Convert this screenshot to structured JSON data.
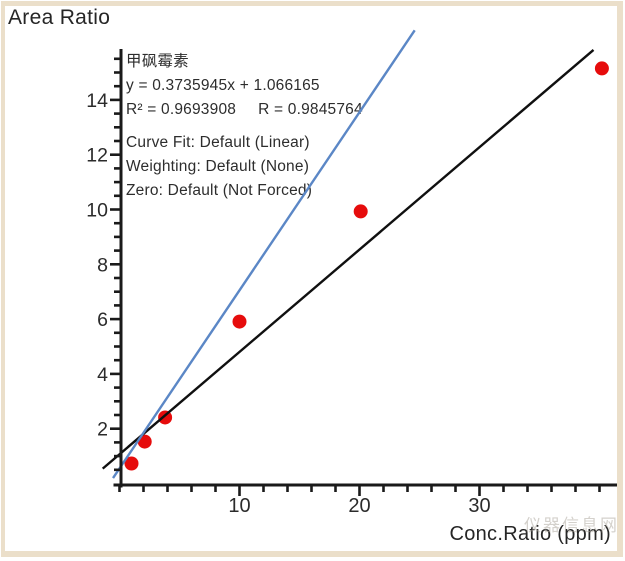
{
  "page": {
    "background": "#ffffff",
    "frame_color": "#ebdfca"
  },
  "chart_data": {
    "type": "scatter",
    "title": "Area Ratio",
    "xlabel": "Conc.Ratio (ppm)",
    "ylabel": "Area Ratio",
    "xlim": [
      -0.6,
      41.5
    ],
    "ylim": [
      -0.2,
      15.9
    ],
    "grid": "off",
    "x_major_ticks": [
      10,
      20,
      30
    ],
    "x_minor_tick_step": 2,
    "x_minor_tick_range": [
      0,
      40
    ],
    "y_major_ticks": [
      2,
      4,
      6,
      8,
      10,
      12,
      14
    ],
    "y_minor_tick_step": 0.5,
    "y_minor_tick_range": [
      0.5,
      15.5
    ],
    "axis_color": "#1a1a1a",
    "tick_label_color": "#2b2b2b",
    "point_color": "#e60c0c",
    "point_radius": 7,
    "points": [
      {
        "x": 1.0,
        "y": 0.73
      },
      {
        "x": 2.1,
        "y": 1.53
      },
      {
        "x": 3.8,
        "y": 2.41
      },
      {
        "x": 10.0,
        "y": 5.91
      },
      {
        "x": 20.1,
        "y": 9.93
      },
      {
        "x": 40.2,
        "y": 15.15
      }
    ],
    "lines": [
      {
        "name": "regression-line",
        "color": "#101010",
        "width": 2.4,
        "slope": 0.3735945,
        "intercept": 1.066165,
        "x_range": [
          -1.4,
          39.5
        ]
      },
      {
        "name": "weighted-fit-line",
        "color": "#5b87c6",
        "width": 2.4,
        "slope": 0.65,
        "intercept": 0.551,
        "x_range": [
          -0.54,
          24.6
        ]
      }
    ],
    "annotation": {
      "compound": "甲砜霉素",
      "equation": "y = 0.3735945x + 1.066165",
      "r_squared": "R² = 0.9693908",
      "r": "R = 0.9845764",
      "curve_fit": "Curve Fit: Default (Linear)",
      "weighting": "Weighting: Default (None)",
      "zero": "Zero: Default (Not Forced)"
    }
  },
  "watermark": {
    "text": "仪器信息网"
  }
}
